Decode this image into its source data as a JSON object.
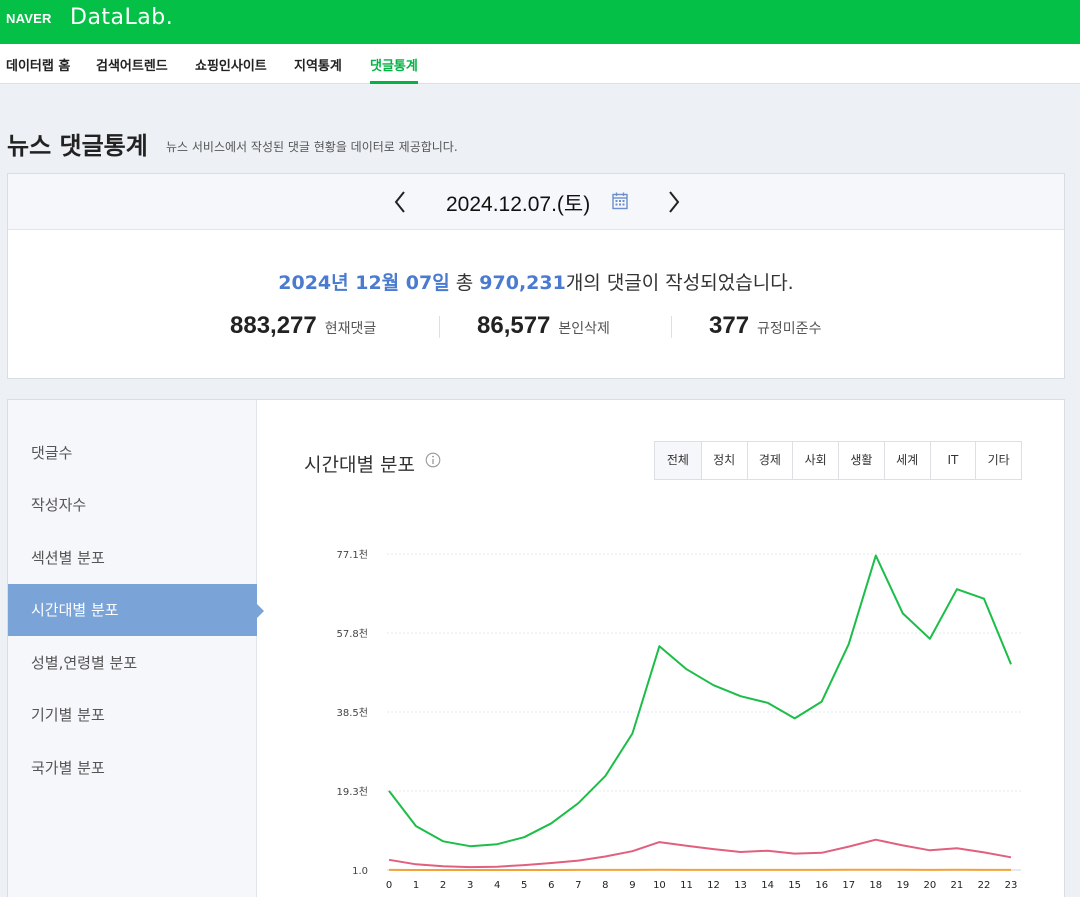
{
  "header": {
    "logo_naver": "NAVER",
    "logo_datalab": "DataLab."
  },
  "nav": {
    "items": [
      {
        "label": "데이터랩 홈"
      },
      {
        "label": "검색어트렌드"
      },
      {
        "label": "쇼핑인사이트"
      },
      {
        "label": "지역통계"
      },
      {
        "label": "댓글통계",
        "active": true
      }
    ]
  },
  "page": {
    "title": "뉴스 댓글통계",
    "subtitle": "뉴스 서비스에서 작성된 댓글 현황을 데이터로 제공합니다."
  },
  "date_nav": {
    "date": "2024.12.07.(토)"
  },
  "summary": {
    "date_label": "2024년 12월 07일",
    "prefix": "총",
    "total": "970,231",
    "suffix": "개의 댓글이 작성되었습니다.",
    "stats": [
      {
        "value": "883,277",
        "label": "현재댓글"
      },
      {
        "value": "86,577",
        "label": "본인삭제"
      },
      {
        "value": "377",
        "label": "규정미준수"
      }
    ]
  },
  "sidebar": {
    "items": [
      {
        "label": "댓글수"
      },
      {
        "label": "작성자수"
      },
      {
        "label": "섹션별 분포"
      },
      {
        "label": "시간대별 분포",
        "active": true
      },
      {
        "label": "성별,연령별 분포"
      },
      {
        "label": "기기별 분포"
      },
      {
        "label": "국가별 분포"
      }
    ]
  },
  "chart_section": {
    "title": "시간대별 분포",
    "tabs": [
      "전체",
      "정치",
      "경제",
      "사회",
      "생활",
      "세계",
      "IT",
      "기타"
    ],
    "active_tab": "전체"
  },
  "chart_data": {
    "type": "line",
    "x": [
      "0",
      "1",
      "2",
      "3",
      "4",
      "5",
      "6",
      "7",
      "8",
      "9",
      "10",
      "11",
      "12",
      "13",
      "14",
      "15",
      "16",
      "17",
      "18",
      "19",
      "20",
      "21",
      "22",
      "23"
    ],
    "y_ticks": [
      "1.0",
      "19.3천",
      "38.5천",
      "57.8천",
      "77.1천"
    ],
    "ylim": [
      1.0,
      77100
    ],
    "grid": true,
    "series": [
      {
        "color": "#1cbd48",
        "values": [
          19300,
          10700,
          7000,
          5800,
          6300,
          8000,
          11400,
          16300,
          22900,
          33300,
          54600,
          49000,
          45100,
          42400,
          40800,
          37000,
          41100,
          55100,
          76700,
          62600,
          56400,
          68500,
          66200,
          50200
        ]
      },
      {
        "color": "#e0607e",
        "values": [
          2500,
          1400,
          900,
          700,
          800,
          1200,
          1700,
          2300,
          3300,
          4600,
          6800,
          5900,
          5100,
          4400,
          4700,
          4000,
          4200,
          5700,
          7400,
          6000,
          4800,
          5300,
          4300,
          3100
        ]
      },
      {
        "color": "#f2a23a",
        "values": [
          20,
          12,
          8,
          6,
          6,
          8,
          12,
          16,
          22,
          30,
          40,
          36,
          32,
          30,
          30,
          28,
          30,
          38,
          46,
          40,
          36,
          38,
          34,
          28
        ]
      }
    ]
  }
}
